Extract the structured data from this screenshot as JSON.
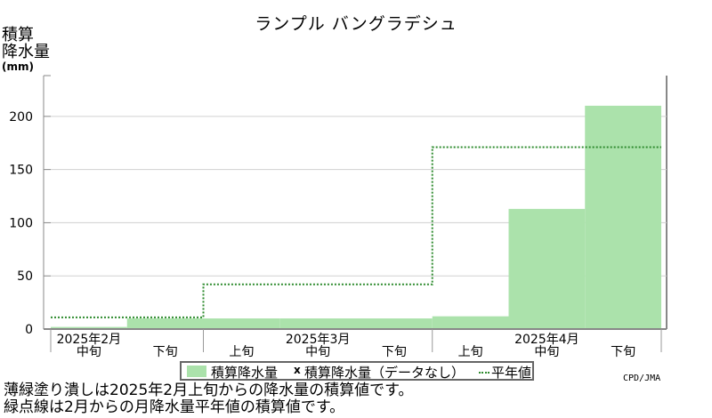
{
  "chart_data": {
    "type": "bar",
    "title": "ランプル バングラデシュ",
    "ylabel_lines": [
      "積算",
      "降水量",
      "(mm)"
    ],
    "ylim": [
      0,
      235
    ],
    "yticks": [
      0,
      50,
      100,
      150,
      200
    ],
    "grid": true,
    "periods": [
      "2025年2月中旬",
      "2025年2月下旬",
      "2025年3月上旬",
      "2025年3月中旬",
      "2025年3月下旬",
      "2025年4月上旬",
      "2025年4月中旬",
      "2025年4月下旬"
    ],
    "dekad_labels": [
      "中旬",
      "下旬",
      "上旬",
      "中旬",
      "下旬",
      "上旬",
      "中旬",
      "下旬"
    ],
    "month_labels": [
      {
        "text": "2025年2月",
        "period_index": 0
      },
      {
        "text": "2025年3月",
        "period_index": 3
      },
      {
        "text": "2025年4月",
        "period_index": 6
      }
    ],
    "series": [
      {
        "name": "積算降水量",
        "values": [
          2,
          10,
          10,
          10,
          10,
          12,
          113,
          210
        ],
        "color": "#abe2ab"
      },
      {
        "name": "平年値",
        "values": [
          11,
          11,
          42,
          42,
          42,
          171,
          171,
          171
        ],
        "color": "#2e8b2e"
      }
    ],
    "legend": {
      "position": "bottom",
      "entries": [
        "積算降水量",
        "積算降水量（データなし）",
        "平年値"
      ],
      "missing_marker": "x"
    }
  },
  "credit": "CPD/JMA",
  "notes": [
    "薄緑塗り潰しは2025年2月上旬からの降水量の積算値です。",
    "緑点線は2月からの月降水量平年値の積算値です。"
  ]
}
